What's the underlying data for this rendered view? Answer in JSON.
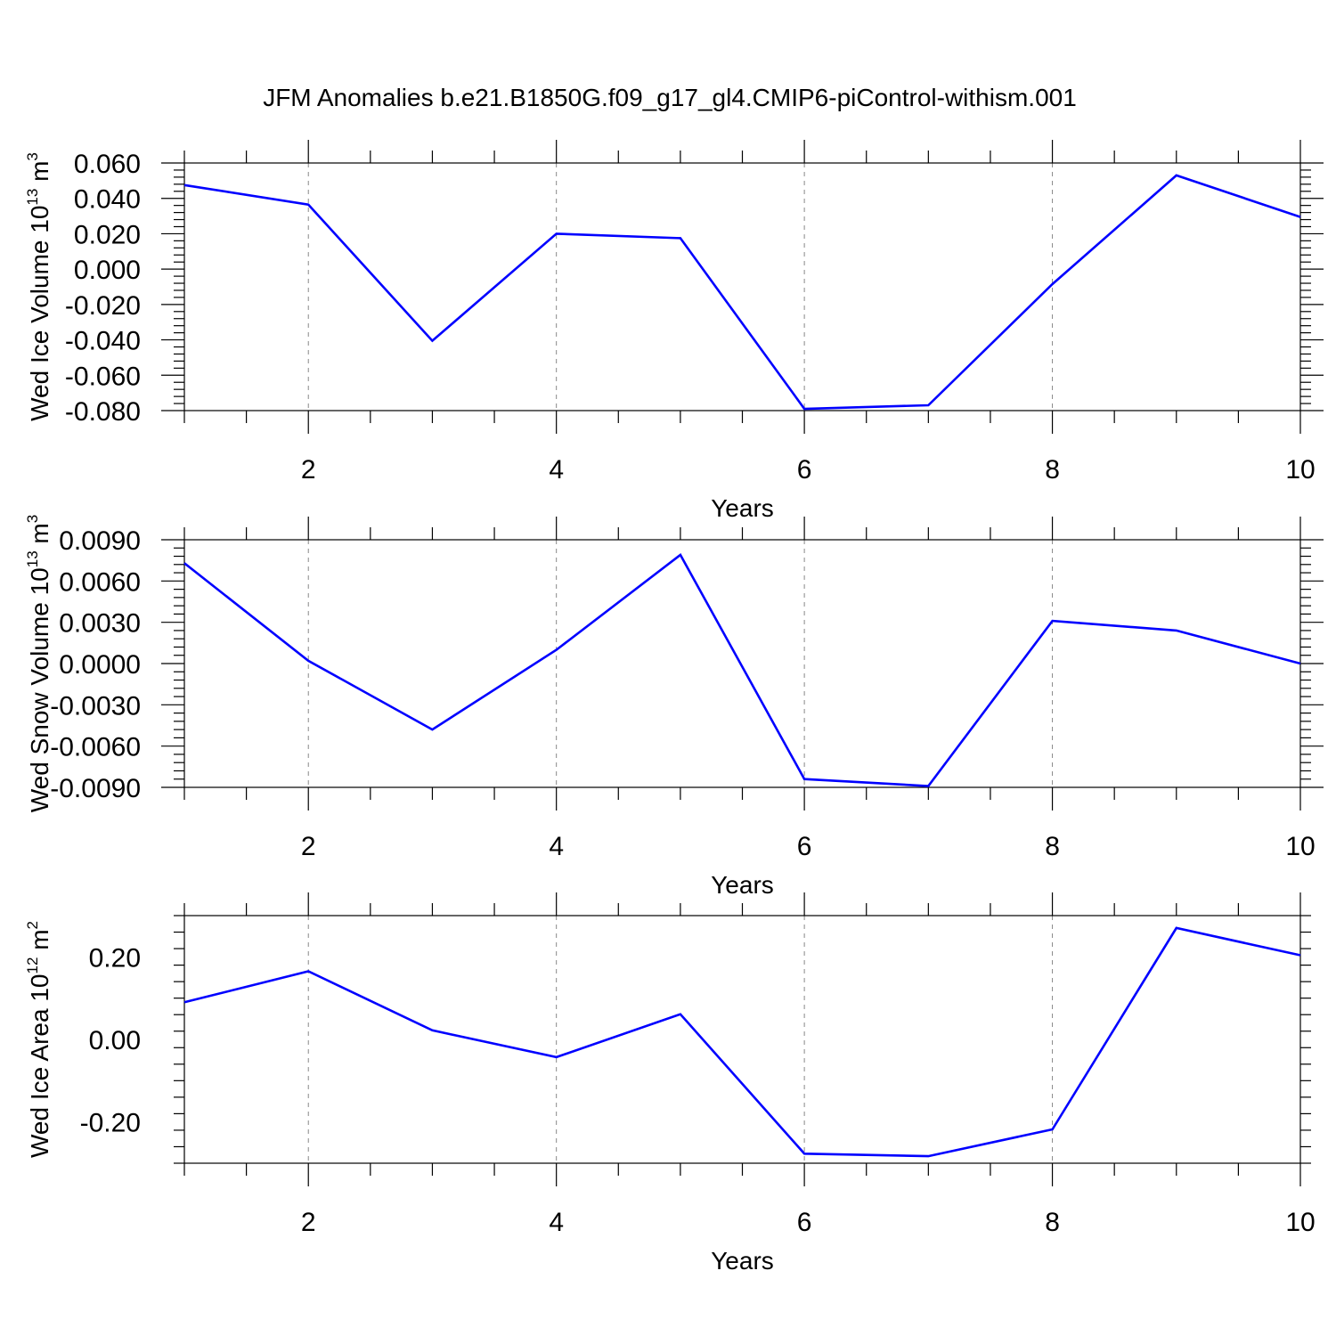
{
  "title": "JFM Anomalies b.e21.B1850G.f09_g17_gl4.CMIP6-piControl-withism.001",
  "chart_data": [
    {
      "type": "line",
      "ylabel": "Wed Ice Volume",
      "ylabel_unit_base": "10",
      "ylabel_unit_exp": "13",
      "ylabel_unit_sym": "m",
      "ylabel_unit_sym_exp": "3",
      "xlabel": "Years",
      "xlim": [
        1,
        10
      ],
      "ylim": [
        -0.08,
        0.06
      ],
      "x_ticks": [
        2,
        4,
        6,
        8,
        10
      ],
      "x_tick_labels": [
        "2",
        "4",
        "6",
        "8",
        "10"
      ],
      "y_ticks": [
        -0.08,
        -0.06,
        -0.04,
        -0.02,
        0.0,
        0.02,
        0.04,
        0.06
      ],
      "y_tick_labels": [
        "-0.080",
        "-0.060",
        "-0.040",
        "-0.020",
        "0.000",
        "0.020",
        "0.040",
        "0.060"
      ],
      "grid": "vertical dashed at major x ticks",
      "color": "#0000ff",
      "x": [
        1,
        2,
        3,
        4,
        5,
        6,
        7,
        8,
        9,
        10
      ],
      "values": [
        0.0475,
        0.0365,
        -0.0405,
        0.02,
        0.0175,
        -0.079,
        -0.077,
        -0.0085,
        0.053,
        0.0295
      ]
    },
    {
      "type": "line",
      "ylabel": "Wed Snow Volume",
      "ylabel_unit_base": "10",
      "ylabel_unit_exp": "13",
      "ylabel_unit_sym": "m",
      "ylabel_unit_sym_exp": "3",
      "xlabel": "Years",
      "xlim": [
        1,
        10
      ],
      "ylim": [
        -0.009,
        0.009
      ],
      "x_ticks": [
        2,
        4,
        6,
        8,
        10
      ],
      "x_tick_labels": [
        "2",
        "4",
        "6",
        "8",
        "10"
      ],
      "y_ticks": [
        -0.009,
        -0.006,
        -0.003,
        0.0,
        0.003,
        0.006,
        0.009
      ],
      "y_tick_labels": [
        "-0.0090",
        "-0.0060",
        "-0.0030",
        "0.0000",
        "0.0030",
        "0.0060",
        "0.0090"
      ],
      "grid": "vertical dashed at major x ticks",
      "color": "#0000ff",
      "x": [
        1,
        2,
        3,
        4,
        5,
        6,
        7,
        8,
        9,
        10
      ],
      "values": [
        0.0073,
        0.0002,
        -0.0048,
        0.001,
        0.0079,
        -0.0084,
        -0.0089,
        0.0031,
        0.0024,
        0.0
      ]
    },
    {
      "type": "line",
      "ylabel": "Wed Ice Area",
      "ylabel_unit_base": "10",
      "ylabel_unit_exp": "12",
      "ylabel_unit_sym": "m",
      "ylabel_unit_sym_exp": "2",
      "xlabel": "Years",
      "xlim": [
        1,
        10
      ],
      "ylim": [
        -0.3,
        0.3
      ],
      "x_ticks": [
        2,
        4,
        6,
        8,
        10
      ],
      "x_tick_labels": [
        "2",
        "4",
        "6",
        "8",
        "10"
      ],
      "y_ticks": [
        -0.2,
        0.0,
        0.2
      ],
      "y_tick_labels": [
        "-0.20",
        "0.00",
        "0.20"
      ],
      "grid": "vertical dashed at major x ticks",
      "color": "#0000ff",
      "x": [
        1,
        2,
        3,
        4,
        5,
        6,
        7,
        8,
        9,
        10
      ],
      "values": [
        0.09,
        0.165,
        0.022,
        -0.043,
        0.061,
        -0.277,
        -0.283,
        -0.218,
        0.27,
        0.204
      ]
    }
  ]
}
